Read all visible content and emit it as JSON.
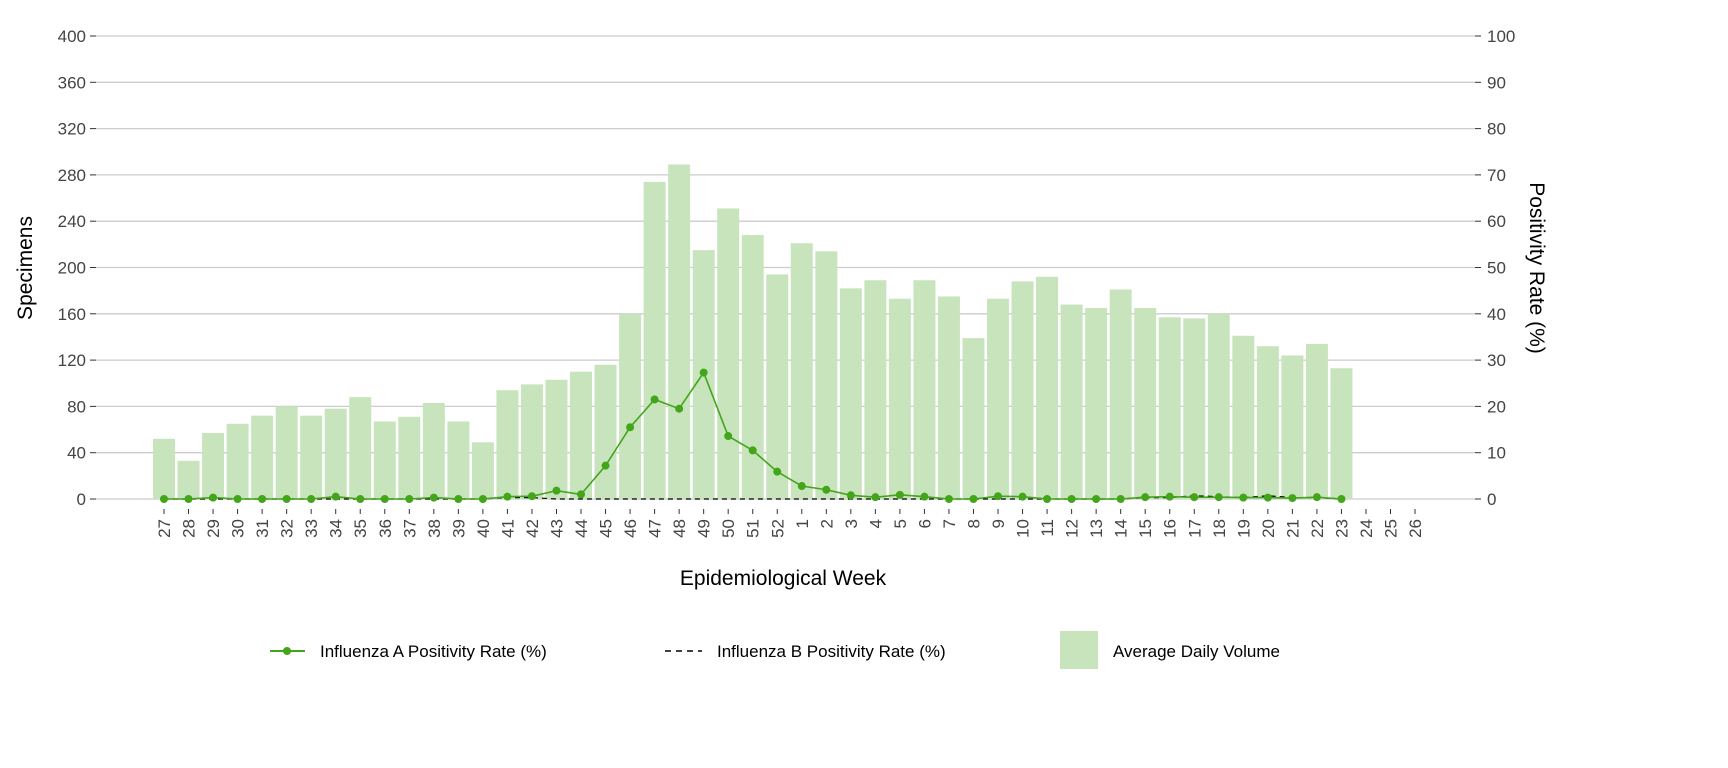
{
  "chart_data": {
    "type": "bar",
    "xlabel": "Epidemiological Week",
    "ylabel": "Specimens",
    "y2label": "Positivity Rate (%)",
    "ylim": [
      0,
      400
    ],
    "y2lim": [
      0,
      100
    ],
    "yticks": [
      0,
      40,
      80,
      120,
      160,
      200,
      240,
      280,
      320,
      360,
      400
    ],
    "y2ticks": [
      0,
      10,
      20,
      30,
      40,
      50,
      60,
      70,
      80,
      90,
      100
    ],
    "grid": true,
    "legend_position": "bottom",
    "categories": [
      "27",
      "28",
      "29",
      "30",
      "31",
      "32",
      "33",
      "34",
      "35",
      "36",
      "37",
      "38",
      "39",
      "40",
      "41",
      "42",
      "43",
      "44",
      "45",
      "46",
      "47",
      "48",
      "49",
      "50",
      "51",
      "52",
      "1",
      "2",
      "3",
      "4",
      "5",
      "6",
      "7",
      "8",
      "9",
      "10",
      "11",
      "12",
      "13",
      "14",
      "15",
      "16",
      "17",
      "18",
      "19",
      "20",
      "21",
      "22",
      "23",
      "24",
      "25",
      "26"
    ],
    "series": [
      {
        "name": "Average Daily Volume",
        "type": "bar",
        "axis": "left",
        "color": "#c8e4bd",
        "values": [
          52,
          33,
          57,
          65,
          72,
          80,
          72,
          78,
          88,
          67,
          71,
          83,
          67,
          49,
          94,
          99,
          103,
          110,
          116,
          160,
          274,
          289,
          215,
          251,
          228,
          194,
          221,
          214,
          182,
          189,
          173,
          189,
          175,
          139,
          173,
          188,
          192,
          168,
          165,
          181,
          165,
          157,
          156,
          160,
          141,
          132,
          124,
          134,
          113,
          null,
          null,
          null
        ]
      },
      {
        "name": "Influenza A Positivity Rate (%)",
        "type": "line",
        "axis": "right",
        "color": "#43a51a",
        "values": [
          0,
          0,
          0.3,
          0,
          0,
          0,
          0,
          0.5,
          0,
          0,
          0,
          0.3,
          0,
          0,
          0.5,
          0.6,
          1.8,
          1,
          7.2,
          15.5,
          21.5,
          19.5,
          27.3,
          13.6,
          10.5,
          5.9,
          2.8,
          2,
          0.8,
          0.4,
          0.9,
          0.5,
          0,
          0,
          0.6,
          0.5,
          0,
          0,
          0,
          0,
          0.4,
          0.5,
          0.4,
          0.4,
          0.3,
          0.3,
          0.2,
          0.4,
          0,
          null,
          null,
          null
        ]
      },
      {
        "name": "Influenza B Positivity Rate (%)",
        "type": "line",
        "axis": "right",
        "color": "#000000",
        "dash": true,
        "values": [
          0,
          0,
          0,
          0,
          0,
          0,
          0,
          0,
          0,
          0,
          0,
          0,
          0,
          0,
          0.3,
          0.3,
          0,
          0,
          0,
          0,
          0,
          0,
          0,
          0,
          0,
          0,
          0,
          0,
          0,
          0,
          0,
          0,
          0,
          0,
          0,
          0,
          0,
          0,
          0,
          0,
          0.3,
          0.3,
          0.7,
          0.5,
          0.3,
          0.7,
          0.3,
          0.3,
          0,
          null,
          null,
          null
        ]
      }
    ]
  }
}
